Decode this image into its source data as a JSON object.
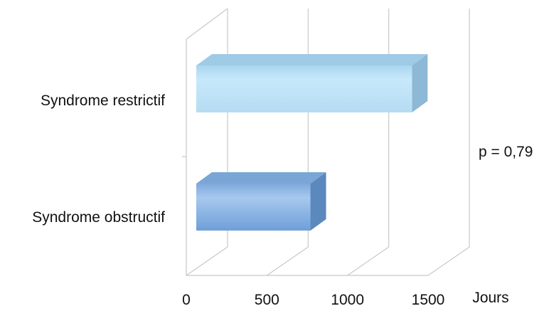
{
  "chart_data": {
    "type": "bar",
    "orientation": "horizontal",
    "style": "3d",
    "categories": [
      "Syndrome restrictif",
      "Syndrome obstructif"
    ],
    "values": [
      1400,
      770
    ],
    "colors": [
      "#bfe3f7",
      "#8fb8e6"
    ],
    "xlim": [
      0,
      1500
    ],
    "x_ticks": [
      "0",
      "500",
      "1000",
      "1500"
    ],
    "x_tick_values": [
      0,
      500,
      1000,
      1500
    ],
    "xlabel": "Jours",
    "annotation": "p = 0,79",
    "grid": true,
    "legend": "none"
  }
}
